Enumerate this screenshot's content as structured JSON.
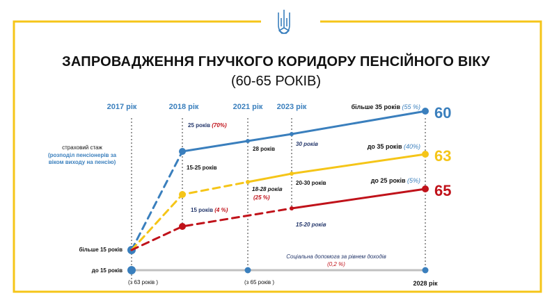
{
  "header": {
    "emblem_icon": "trident-emblem-icon",
    "title": "ЗАПРОВАДЖЕННЯ ГНУЧКОГО КОРИДОРУ ПЕНСІЙНОГО ВІКУ",
    "subtitle": "(60-65 РОКІВ)"
  },
  "colors": {
    "frame": "#f5c518",
    "blue": "#3a7fbd",
    "yellow": "#f5c518",
    "red": "#c0121a",
    "grey": "#c0c0c0",
    "year": "#3a7fbd",
    "dark_note": "#24376b"
  },
  "chart_data": {
    "type": "line",
    "title": "ЗАПРОВАДЖЕННЯ ГНУЧКОГО КОРИДОРУ ПЕНСІЙНОГО ВІКУ",
    "x": [
      2017,
      2018,
      2021,
      2023,
      2028
    ],
    "x_labels": [
      "2017 рік",
      "2018 рік",
      "2021 рік",
      "2023 рік",
      "2028 рік"
    ],
    "y_label_left": "страховий стаж",
    "y_label_left_note": "(розподіл пенсіонерів за віком виходу на пенсію)",
    "series": [
      {
        "name": "більше 35 років",
        "share": "(55 %)",
        "retirement_age": 60,
        "color": "#3a7fbd",
        "points": [
          [
            2017,
            60
          ],
          [
            2018,
            60
          ],
          [
            2021,
            60
          ],
          [
            2023,
            60
          ],
          [
            2028,
            60
          ]
        ]
      },
      {
        "name": "до 35 років",
        "share": "(40%)",
        "retirement_age": 63,
        "color": "#f5c518",
        "points": [
          [
            2017,
            60
          ],
          [
            2018,
            60
          ],
          [
            2021,
            60
          ],
          [
            2023,
            60
          ],
          [
            2028,
            63
          ]
        ]
      },
      {
        "name": "до 25 років",
        "share": "(5%)",
        "retirement_age": 65,
        "color": "#c0121a",
        "points": [
          [
            2017,
            60
          ],
          [
            2018,
            60
          ],
          [
            2021,
            60
          ],
          [
            2023,
            60
          ],
          [
            2028,
            65
          ]
        ]
      },
      {
        "name": "Соціальна допомога за рівнем доходів",
        "share": "(0,2 %)",
        "color": "#c0c0c0",
        "points": [
          [
            2017,
            63
          ],
          [
            2021,
            65
          ],
          [
            2028,
            65
          ]
        ]
      }
    ],
    "start_labels": [
      "більше 15 років",
      "до 15 років"
    ],
    "annotations": [
      {
        "text": "25 років",
        "share": "(70%)"
      },
      {
        "text": "15-25 років"
      },
      {
        "text": "15 років",
        "share": "(4 %)"
      },
      {
        "text": "28 років"
      },
      {
        "text": "18-28 років",
        "share": "(25 %)"
      },
      {
        "text": "30 років"
      },
      {
        "text": "20-30 років"
      },
      {
        "text": "15-20 років"
      },
      {
        "text": "(з 63 років )"
      },
      {
        "text": "(з 65 років )"
      }
    ]
  }
}
